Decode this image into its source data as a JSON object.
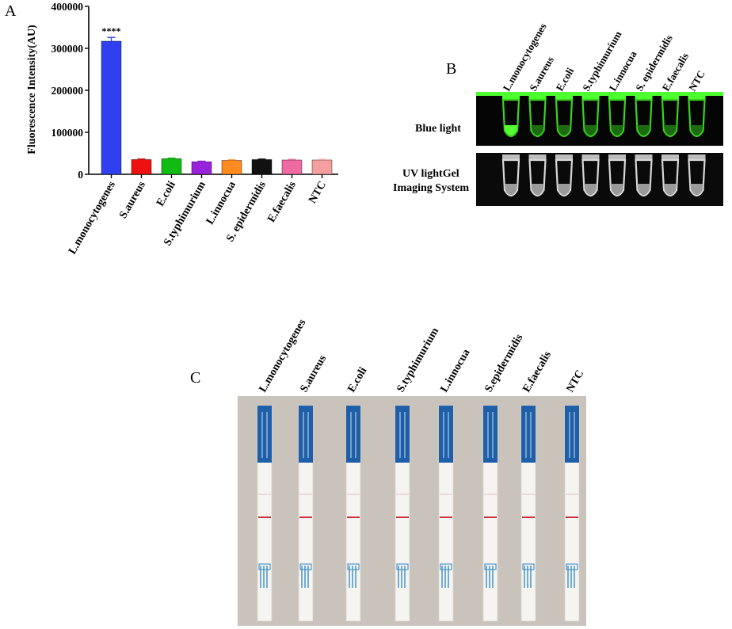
{
  "panels": {
    "a": "A",
    "b": "B",
    "c": "C"
  },
  "chart_data": {
    "type": "bar",
    "ylabel": "Fluorescence Intensity(AU)",
    "ylim": [
      0,
      400000
    ],
    "yticks": [
      0,
      100000,
      200000,
      300000,
      400000
    ],
    "ytick_labels": [
      "0",
      "100000",
      "200000",
      "300000",
      "400000"
    ],
    "categories": [
      "L.monocytogenes",
      "S.aureus",
      "E.coli",
      "S.typhimurium",
      "L.innocua",
      "S. epidermidis",
      "E.faecalis",
      "NTC"
    ],
    "values": [
      317000,
      35000,
      37000,
      30000,
      33000,
      35000,
      34000,
      34000
    ],
    "errors": [
      9000,
      1500,
      1500,
      1200,
      1200,
      1200,
      1500,
      1200
    ],
    "colors": [
      "#3040f0",
      "#ee1111",
      "#11bb11",
      "#9922dd",
      "#ff8a1e",
      "#111111",
      "#ee6aa0",
      "#f5a0a0"
    ],
    "annotations": [
      {
        "category": "L.monocytogenes",
        "text": "****"
      }
    ]
  },
  "panel_b": {
    "tube_labels": [
      "L.monocytogenes",
      "S.aureus",
      "E.coli",
      "S.typhimurium",
      "L.innocua",
      "S. epidermidis",
      "E.faecalis",
      "NTC"
    ],
    "row1_label": "Blue light",
    "row2_label_line1": "UV lightGel",
    "row2_label_line2": "Imaging System"
  },
  "panel_c": {
    "strip_labels": [
      "L.monocytogenes",
      "S.aureus",
      "E.coli",
      "S.typhimurium",
      "L.innocua",
      "S.epidermidis",
      "E.faecalis",
      "NTC"
    ]
  }
}
